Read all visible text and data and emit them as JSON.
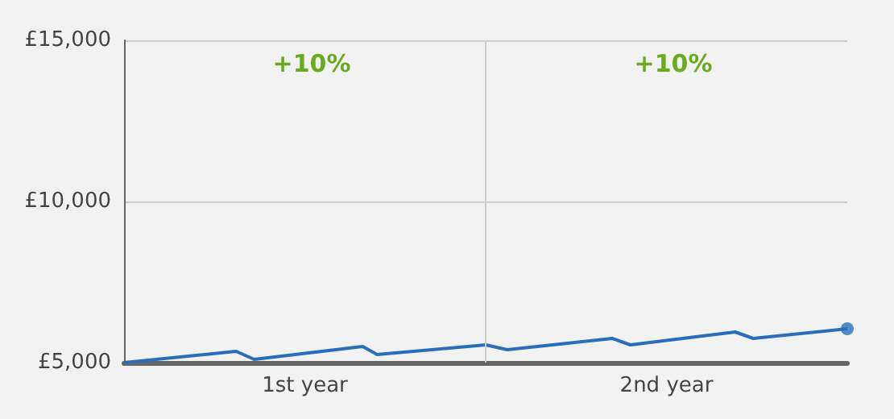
{
  "chart_data": {
    "type": "line",
    "xlim": [
      0,
      2
    ],
    "xticks": [
      {
        "value": 0.5,
        "label": "1st year"
      },
      {
        "value": 1.5,
        "label": "2nd year"
      }
    ],
    "ylim": [
      5000,
      15000
    ],
    "yticks": [
      {
        "value": 5000,
        "label": "£5,000"
      },
      {
        "value": 10000,
        "label": "£10,000"
      },
      {
        "value": 15000,
        "label": "£15,000"
      }
    ],
    "grid": "y",
    "ref_lines": [
      {
        "axis": "x",
        "value": 1,
        "color": "#cccccc"
      }
    ],
    "annotations": [
      "+10%",
      "+10%"
    ],
    "series": [
      {
        "color": "#2a6ebb",
        "marker": "none",
        "x": [
          0,
          0.31,
          0.36,
          0.66,
          0.7,
          1.0,
          1.06,
          1.35,
          1.4,
          1.69,
          1.74,
          2.0
        ],
        "values": [
          5000,
          5350,
          5100,
          5500,
          5250,
          5550,
          5400,
          5750,
          5550,
          5950,
          5750,
          6050
        ]
      },
      {
        "type": "scatter",
        "color": "#2a6ebb",
        "marker": "circle",
        "x": [
          2.0
        ],
        "values": [
          6050
        ]
      }
    ]
  }
}
